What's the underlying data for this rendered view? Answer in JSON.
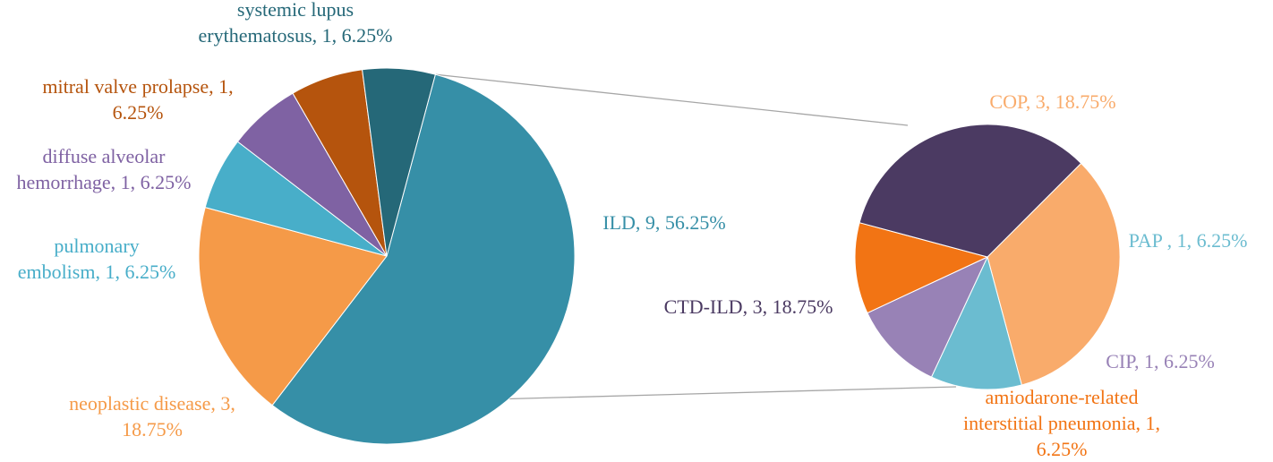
{
  "chart_data": [
    {
      "type": "pie",
      "title": "",
      "slices": [
        {
          "name": "ILD",
          "value": 9,
          "percent": "56.25%",
          "color": "#368fa7",
          "label_lines": [
            "ILD, 9, 56.25%"
          ]
        },
        {
          "name": "neoplastic disease",
          "value": 3,
          "percent": "18.75%",
          "color": "#f59a48",
          "label_lines": [
            "neoplastic disease, 3,",
            "18.75%"
          ]
        },
        {
          "name": "pulmonary embolism",
          "value": 1,
          "percent": "6.25%",
          "color": "#48aec9",
          "label_lines": [
            "pulmonary",
            "embolism, 1, 6.25%"
          ]
        },
        {
          "name": "diffuse alveolar hemorrhage",
          "value": 1,
          "percent": "6.25%",
          "color": "#7f62a3",
          "label_lines": [
            "diffuse alveolar",
            "hemorrhage, 1, 6.25%"
          ]
        },
        {
          "name": "mitral valve prolapse",
          "value": 1,
          "percent": "6.25%",
          "color": "#b5540d",
          "label_lines": [
            "mitral valve prolapse, 1,",
            "6.25%"
          ]
        },
        {
          "name": "systemic lupus erythematosus",
          "value": 1,
          "percent": "6.25%",
          "color": "#256878",
          "label_lines": [
            "systemic lupus",
            "erythematosus, 1, 6.25%"
          ]
        }
      ]
    },
    {
      "type": "pie",
      "title": "",
      "exploded_from": "ILD",
      "slices": [
        {
          "name": "COP",
          "value": 3,
          "percent": "18.75%",
          "color": "#f9ab6b",
          "label_lines": [
            "COP, 3, 18.75%"
          ]
        },
        {
          "name": "PAP",
          "value": 1,
          "percent": "6.25%",
          "color": "#6bbcd0",
          "label_lines": [
            "PAP , 1, 6.25%"
          ]
        },
        {
          "name": "CIP",
          "value": 1,
          "percent": "6.25%",
          "color": "#9882b6",
          "label_lines": [
            "CIP, 1, 6.25%"
          ]
        },
        {
          "name": "amiodarone-related interstitial pneumonia",
          "value": 1,
          "percent": "6.25%",
          "color": "#f27414",
          "label_lines": [
            "amiodarone-related",
            "interstitial pneumonia, 1,",
            "6.25%"
          ]
        },
        {
          "name": "CTD-ILD",
          "value": 3,
          "percent": "18.75%",
          "color": "#4b3a62",
          "label_lines": [
            "CTD-ILD, 3, 18.75%"
          ]
        }
      ]
    }
  ]
}
